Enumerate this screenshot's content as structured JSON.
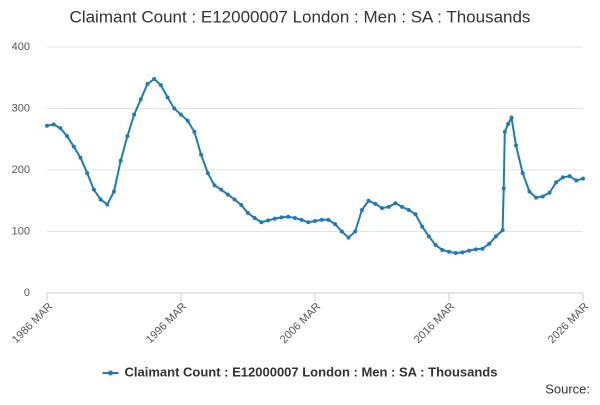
{
  "chart_data": {
    "type": "line",
    "title": "Claimant Count : E12000007 London : Men : SA : Thousands",
    "source": "Source:",
    "x": [
      "1986 MAR",
      "1986 SEP",
      "1987 MAR",
      "1987 SEP",
      "1988 MAR",
      "1988 SEP",
      "1989 MAR",
      "1989 SEP",
      "1990 MAR",
      "1990 SEP",
      "1991 MAR",
      "1991 SEP",
      "1992 MAR",
      "1992 SEP",
      "1993 MAR",
      "1993 SEP",
      "1994 MAR",
      "1994 SEP",
      "1995 MAR",
      "1995 SEP",
      "1996 MAR",
      "1996 SEP",
      "1997 MAR",
      "1997 SEP",
      "1998 MAR",
      "1998 SEP",
      "1999 MAR",
      "1999 SEP",
      "2000 MAR",
      "2000 SEP",
      "2001 MAR",
      "2001 SEP",
      "2002 MAR",
      "2002 SEP",
      "2003 MAR",
      "2003 SEP",
      "2004 MAR",
      "2004 SEP",
      "2005 MAR",
      "2005 SEP",
      "2006 MAR",
      "2006 SEP",
      "2007 MAR",
      "2007 SEP",
      "2008 MAR",
      "2008 SEP",
      "2009 MAR",
      "2009 SEP",
      "2010 MAR",
      "2010 SEP",
      "2011 MAR",
      "2011 SEP",
      "2012 MAR",
      "2012 SEP",
      "2013 MAR",
      "2013 SEP",
      "2014 MAR",
      "2014 SEP",
      "2015 MAR",
      "2015 SEP",
      "2016 MAR",
      "2016 SEP",
      "2017 MAR",
      "2017 SEP",
      "2018 MAR",
      "2018 SEP",
      "2019 MAR",
      "2019 SEP",
      "2020 MAR",
      "2020 APR",
      "2020 MAY",
      "2020 AUG",
      "2020 NOV",
      "2021 MAR",
      "2021 SEP",
      "2022 MAR",
      "2022 SEP",
      "2023 MAR",
      "2023 SEP",
      "2024 MAR",
      "2024 SEP",
      "2025 MAR",
      "2025 SEP",
      "2026 MAR"
    ],
    "series": [
      {
        "name": "Claimant Count : E12000007 London : Men : SA : Thousands",
        "color": "#1f7bb6",
        "values": [
          272,
          274,
          268,
          255,
          238,
          220,
          195,
          168,
          152,
          144,
          165,
          215,
          255,
          290,
          315,
          340,
          348,
          338,
          318,
          300,
          290,
          280,
          262,
          225,
          195,
          175,
          168,
          160,
          152,
          143,
          130,
          122,
          115,
          118,
          121,
          123,
          124,
          122,
          119,
          115,
          117,
          119,
          119,
          112,
          100,
          90,
          100,
          135,
          150,
          145,
          138,
          140,
          146,
          140,
          135,
          128,
          108,
          92,
          78,
          70,
          67,
          65,
          66,
          69,
          71,
          72,
          80,
          92,
          102,
          170,
          262,
          275,
          285,
          240,
          195,
          165,
          155,
          157,
          163,
          180,
          188,
          190,
          183,
          186
        ]
      }
    ],
    "xlim": [
      "1986 MAR",
      "2026 MAR"
    ],
    "xticks": [
      "1986 MAR",
      "1996 MAR",
      "2006 MAR",
      "2016 MAR",
      "2026 MAR"
    ],
    "ylim": [
      0,
      400
    ],
    "yticks": [
      0,
      100,
      200,
      300,
      400
    ],
    "grid": true
  }
}
